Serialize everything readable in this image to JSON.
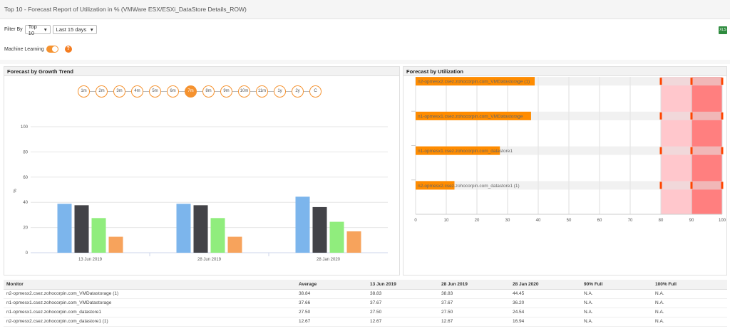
{
  "header": {
    "title": "Top 10 - Forecast Report of Utilization in % (VMWare ESX/ESXi_DataStore Details_ROW)"
  },
  "filter": {
    "label": "Filter By",
    "top": "Top 10",
    "period": "Last 15 days",
    "export_icon": "excel-icon"
  },
  "ml": {
    "label": "Machine Learning",
    "enabled": true,
    "help": "?"
  },
  "growth": {
    "title": "Forecast by Growth Trend",
    "periods": [
      "1m",
      "2m",
      "3m",
      "4m",
      "5m",
      "6m",
      "7m",
      "8m",
      "9m",
      "10m",
      "11m",
      "1y",
      "2y",
      "C"
    ],
    "selected": "7m"
  },
  "util": {
    "title": "Forecast by Utilization"
  },
  "chart_data": [
    {
      "type": "bar",
      "categories": [
        "13 Jun 2019",
        "28 Jun 2019",
        "28 Jan 2020"
      ],
      "ylabel": "%",
      "ylim": [
        0,
        100
      ],
      "yticks": [
        0,
        20,
        40,
        60,
        80,
        100
      ],
      "grid": true,
      "series": [
        {
          "values": [
            38.83,
            38.83,
            44.45
          ],
          "color": "#7cb5ec"
        },
        {
          "values": [
            37.67,
            37.67,
            36.2
          ],
          "color": "#434348"
        },
        {
          "values": [
            27.5,
            27.5,
            24.54
          ],
          "color": "#90ed7d"
        },
        {
          "values": [
            12.67,
            12.67,
            16.94
          ],
          "color": "#f7a35c"
        }
      ]
    },
    {
      "type": "bar",
      "orientation": "horizontal",
      "categories": [
        "n2-opmesx2.csez.zohocorpin.com_VMDatastorage (1)",
        "n1-opmesx1.csez.zohocorpin.com_VMDatastorage",
        "n1-opmesx1.csez.zohocorpin.com_datastore1",
        "n2-opmesx2.csez.zohocorpin.com_datastore1 (1)"
      ],
      "values": [
        38.84,
        37.66,
        27.5,
        12.67
      ],
      "xlim": [
        0,
        100
      ],
      "xticks": [
        0,
        10,
        20,
        30,
        40,
        50,
        60,
        70,
        80,
        90,
        100
      ],
      "bands": [
        {
          "from": 80,
          "to": 90,
          "color": "#ffc7cc"
        },
        {
          "from": 90,
          "to": 100,
          "color": "#ff7f7f"
        }
      ],
      "bar_color": "#ff8c00",
      "grid": true
    }
  ],
  "table": {
    "headers": [
      "Monitor",
      "Average",
      "13 Jun 2019",
      "28 Jun 2019",
      "28 Jan 2020",
      "90% Full",
      "100% Full"
    ],
    "rows": [
      [
        "n2-opmesx2.csez.zohocorpin.com_VMDatastorage (1)",
        "38.84",
        "38.83",
        "38.83",
        "44.45",
        "N.A.",
        "N.A."
      ],
      [
        "n1-opmesx1.csez.zohocorpin.com_VMDatastorage",
        "37.66",
        "37.67",
        "37.67",
        "36.20",
        "N.A.",
        "N.A."
      ],
      [
        "n1-opmesx1.csez.zohocorpin.com_datastore1",
        "27.50",
        "27.50",
        "27.50",
        "24.54",
        "N.A.",
        "N.A."
      ],
      [
        "n2-opmesx2.csez.zohocorpin.com_datastore1 (1)",
        "12.67",
        "12.67",
        "12.67",
        "16.94",
        "N.A.",
        "N.A."
      ]
    ]
  }
}
